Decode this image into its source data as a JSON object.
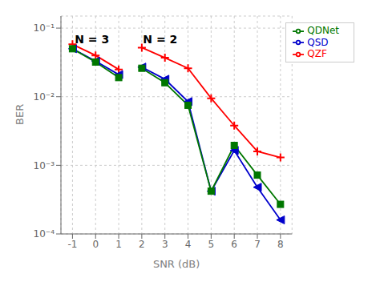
{
  "chart_data": {
    "type": "line",
    "xlabel": "SNR (dB)",
    "ylabel": "BER",
    "log": "y",
    "grid": true,
    "legend": "upper right",
    "x": [
      -1,
      0,
      1,
      2,
      3,
      4,
      5,
      6,
      7,
      8
    ],
    "xlim": [
      -1.5,
      8.5
    ],
    "xticks": [
      -1,
      0,
      1,
      2,
      3,
      4,
      5,
      6,
      7,
      8
    ],
    "ylim": [
      0.0001,
      0.15
    ],
    "yticks": [
      {
        "value": 0.0001,
        "label": "10⁻⁴"
      },
      {
        "value": 0.001,
        "label": "10⁻³"
      },
      {
        "value": 0.01,
        "label": "10⁻²"
      },
      {
        "value": 0.1,
        "label": "10⁻¹"
      }
    ],
    "series": [
      {
        "name": "QZF",
        "color": "#ff0000",
        "marker": "plus",
        "values": [
          0.058,
          0.04,
          0.025,
          null,
          null,
          null,
          null,
          null,
          null,
          null
        ]
      },
      {
        "color": "#ff0000",
        "marker": "plus",
        "values": [
          null,
          null,
          null,
          0.052,
          0.037,
          0.026,
          0.0095,
          0.0038,
          0.0016,
          0.0013
        ]
      },
      {
        "name": "QSD",
        "color": "#0000cc",
        "marker": "triangle-left",
        "values": [
          0.05,
          0.033,
          0.021,
          null,
          null,
          null,
          null,
          null,
          null,
          null
        ]
      },
      {
        "color": "#0000cc",
        "marker": "triangle-left",
        "values": [
          null,
          null,
          null,
          0.027,
          0.018,
          0.0085,
          0.00042,
          0.00165,
          0.00048,
          0.00016
        ]
      },
      {
        "name": "QDNet",
        "color": "#007700",
        "marker": "square",
        "values": [
          0.05,
          0.032,
          0.019,
          null,
          null,
          null,
          null,
          null,
          null,
          null
        ]
      },
      {
        "color": "#007700",
        "marker": "square",
        "values": [
          null,
          null,
          null,
          0.026,
          0.016,
          0.0075,
          0.00042,
          0.00195,
          0.00072,
          0.00027
        ]
      }
    ],
    "annotations": [
      {
        "text": "N = 3",
        "x": -0.9,
        "y": 0.068
      },
      {
        "text": "N = 2",
        "x": 2.05,
        "y": 0.068
      }
    ]
  }
}
